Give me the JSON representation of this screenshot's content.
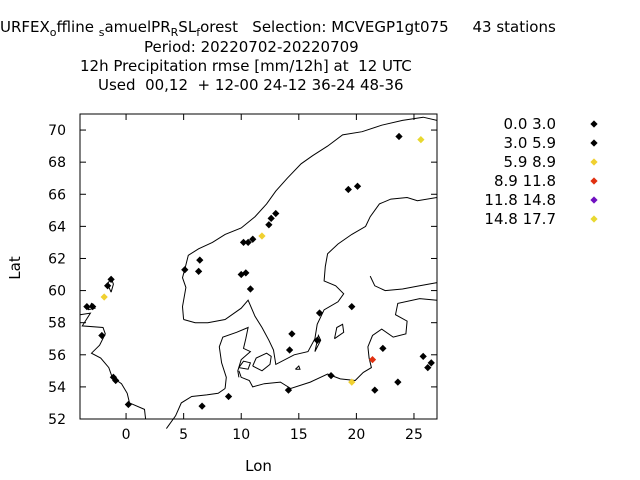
{
  "header": {
    "title_parts": [
      {
        "text": "URFEX",
        "sub": false
      },
      {
        "text": "o",
        "sub": true
      },
      {
        "text": "ffline ",
        "sub": false
      },
      {
        "text": "s",
        "sub": true
      },
      {
        "text": "amuelPR",
        "sub": false
      },
      {
        "text": "R",
        "sub": true
      },
      {
        "text": "SL",
        "sub": false
      },
      {
        "text": "f",
        "sub": true
      },
      {
        "text": "orest   Selection: MCVEGP1gt075     43 stations",
        "sub": false
      }
    ],
    "period": "Period: 20220702-20220709",
    "subtitle": "12h Precipitation rmse [mm/12h] at  12 UTC",
    "used": "Used  00,12  + 12-00 24-12 36-24 48-36"
  },
  "chart_data": {
    "type": "scatter",
    "xlabel": "Lon",
    "ylabel": "Lat",
    "xlim": [
      -4,
      27
    ],
    "ylim": [
      52,
      71
    ],
    "xticks": [
      0,
      5,
      10,
      15,
      20,
      25
    ],
    "yticks": [
      52,
      54,
      56,
      58,
      60,
      62,
      64,
      66,
      68,
      70
    ],
    "grid": false,
    "legend_position": "top-right, outside plot",
    "background": "coastline map",
    "legend": [
      {
        "label": "0.0 3.0",
        "color": "#000000"
      },
      {
        "label": "3.0 5.9",
        "color": "#000000"
      },
      {
        "label": "5.9 8.9",
        "color": "#f0d030"
      },
      {
        "label": "8.9 11.8",
        "color": "#e03010"
      },
      {
        "label": "11.8 14.8",
        "color": "#7010c0"
      },
      {
        "label": "14.8 17.7",
        "color": "#e8d830"
      }
    ],
    "points": [
      {
        "lon": -3.4,
        "lat": 59.0,
        "cls": 0
      },
      {
        "lon": -2.9,
        "lat": 59.0,
        "cls": 0
      },
      {
        "lon": -1.6,
        "lat": 60.3,
        "cls": 1
      },
      {
        "lon": -1.3,
        "lat": 60.7,
        "cls": 0
      },
      {
        "lon": -1.9,
        "lat": 59.6,
        "cls": 2
      },
      {
        "lon": -2.1,
        "lat": 57.2,
        "cls": 0
      },
      {
        "lon": -1.1,
        "lat": 54.6,
        "cls": 0
      },
      {
        "lon": -0.9,
        "lat": 54.4,
        "cls": 1
      },
      {
        "lon": 0.2,
        "lat": 52.9,
        "cls": 0
      },
      {
        "lon": 5.1,
        "lat": 61.3,
        "cls": 0
      },
      {
        "lon": 6.4,
        "lat": 61.9,
        "cls": 1
      },
      {
        "lon": 6.3,
        "lat": 61.2,
        "cls": 0
      },
      {
        "lon": 10.0,
        "lat": 61.0,
        "cls": 0
      },
      {
        "lon": 10.4,
        "lat": 61.1,
        "cls": 0
      },
      {
        "lon": 10.8,
        "lat": 60.1,
        "cls": 0
      },
      {
        "lon": 10.2,
        "lat": 63.0,
        "cls": 0
      },
      {
        "lon": 10.6,
        "lat": 63.0,
        "cls": 1
      },
      {
        "lon": 11.0,
        "lat": 63.2,
        "cls": 0
      },
      {
        "lon": 11.8,
        "lat": 63.4,
        "cls": 2
      },
      {
        "lon": 12.4,
        "lat": 64.1,
        "cls": 1
      },
      {
        "lon": 12.6,
        "lat": 64.5,
        "cls": 0
      },
      {
        "lon": 13.0,
        "lat": 64.8,
        "cls": 0
      },
      {
        "lon": 19.3,
        "lat": 66.3,
        "cls": 0
      },
      {
        "lon": 20.1,
        "lat": 66.5,
        "cls": 0
      },
      {
        "lon": 23.7,
        "lat": 69.6,
        "cls": 0
      },
      {
        "lon": 25.6,
        "lat": 69.4,
        "cls": 5
      },
      {
        "lon": 16.8,
        "lat": 58.6,
        "cls": 0
      },
      {
        "lon": 19.6,
        "lat": 59.0,
        "cls": 1
      },
      {
        "lon": 14.4,
        "lat": 57.3,
        "cls": 0
      },
      {
        "lon": 14.2,
        "lat": 56.3,
        "cls": 0
      },
      {
        "lon": 16.6,
        "lat": 56.9,
        "cls": 0
      },
      {
        "lon": 14.1,
        "lat": 53.8,
        "cls": 0
      },
      {
        "lon": 8.9,
        "lat": 53.4,
        "cls": 0
      },
      {
        "lon": 6.6,
        "lat": 52.8,
        "cls": 1
      },
      {
        "lon": 17.8,
        "lat": 54.7,
        "cls": 0
      },
      {
        "lon": 19.6,
        "lat": 54.3,
        "cls": 2
      },
      {
        "lon": 21.4,
        "lat": 55.7,
        "cls": 3
      },
      {
        "lon": 21.6,
        "lat": 53.8,
        "cls": 0
      },
      {
        "lon": 22.3,
        "lat": 56.4,
        "cls": 0
      },
      {
        "lon": 23.6,
        "lat": 54.3,
        "cls": 0
      },
      {
        "lon": 25.8,
        "lat": 55.9,
        "cls": 0
      },
      {
        "lon": 26.2,
        "lat": 55.2,
        "cls": 0
      },
      {
        "lon": 26.5,
        "lat": 55.5,
        "cls": 1
      }
    ]
  }
}
